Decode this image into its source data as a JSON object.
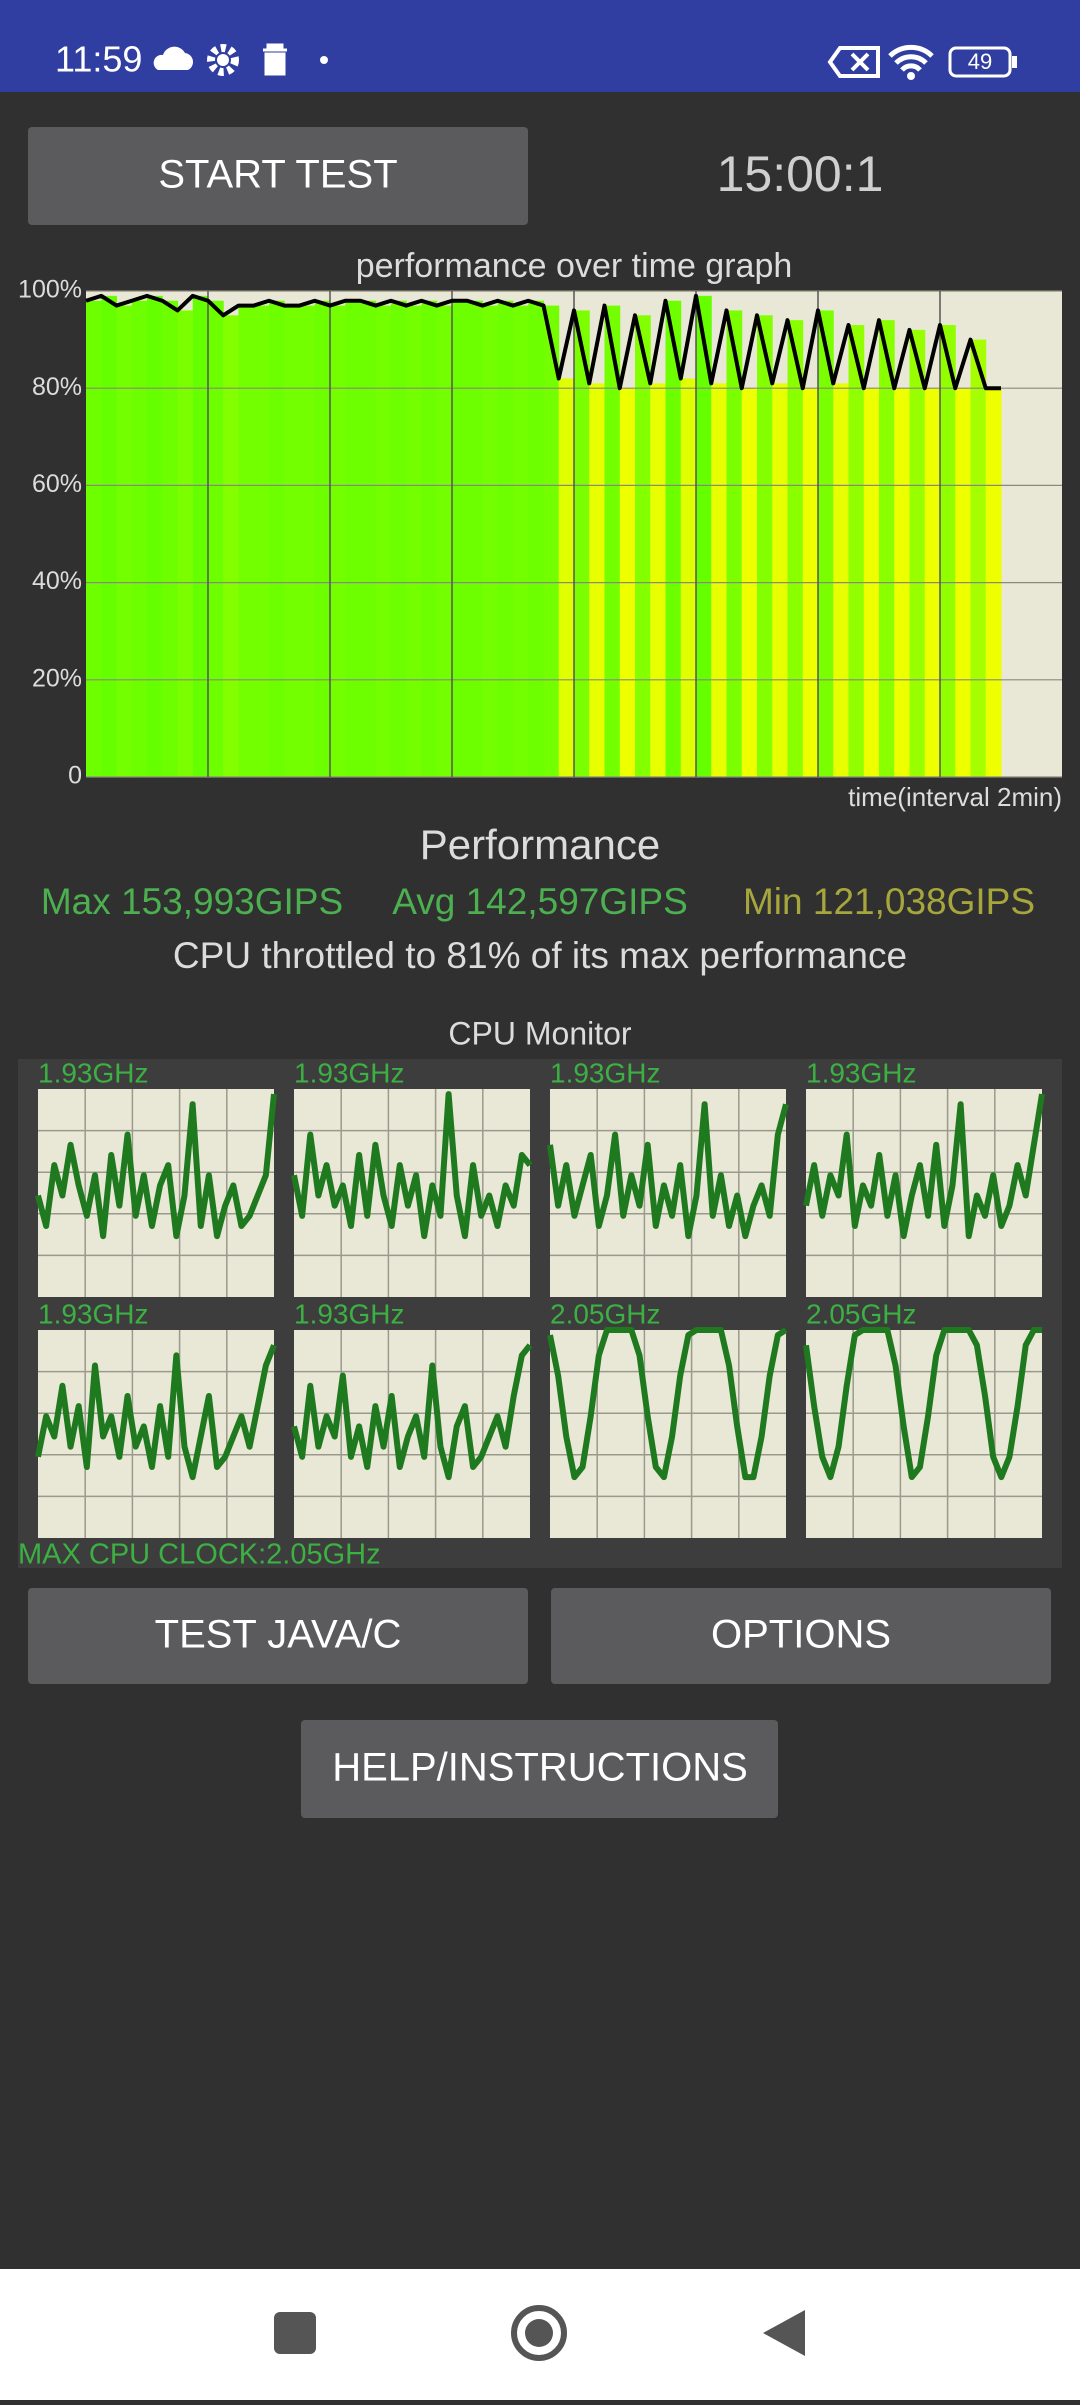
{
  "status_bar": {
    "time": "11:59",
    "battery": "49"
  },
  "start_button": "START TEST",
  "timer": "15:00:1",
  "chart_data": {
    "type": "area",
    "title": "performance over time graph",
    "x_label": "time(interval 2min)",
    "x": [
      0,
      0.25,
      0.5,
      0.75,
      1,
      1.25,
      1.5,
      1.75,
      2,
      2.25,
      2.5,
      2.75,
      3,
      3.25,
      3.5,
      3.75,
      4,
      4.25,
      4.5,
      4.75,
      5,
      5.25,
      5.5,
      5.75,
      6,
      6.25,
      6.5,
      6.75,
      7,
      7.25,
      7.5,
      7.75,
      8,
      8.25,
      8.5,
      8.75,
      9,
      9.25,
      9.5,
      9.75,
      10,
      10.25,
      10.5,
      10.75,
      11,
      11.25,
      11.5,
      11.75,
      12,
      12.25,
      12.5,
      12.75,
      13,
      13.25,
      13.5,
      13.75,
      14,
      14.25,
      14.5,
      14.75,
      15
    ],
    "values": [
      98,
      99,
      97,
      98,
      99,
      98,
      96,
      99,
      98,
      95,
      97,
      97,
      98,
      97,
      97,
      98,
      97,
      98,
      98,
      97,
      98,
      97,
      98,
      97,
      98,
      98,
      97,
      98,
      97,
      98,
      97,
      82,
      96,
      81,
      97,
      80,
      95,
      81,
      98,
      82,
      99,
      81,
      96,
      80,
      95,
      81,
      94,
      80,
      96,
      81,
      93,
      80,
      94,
      80,
      92,
      80,
      93,
      80,
      90,
      80,
      80
    ],
    "xlim": [
      0,
      16
    ],
    "xgrid": [
      2,
      4,
      6,
      8,
      10,
      12,
      14
    ],
    "ylim": [
      0,
      100
    ],
    "yticks": [
      0,
      {
        "value": 20,
        "label": "20%"
      },
      {
        "value": 40,
        "label": "40%"
      },
      {
        "value": 60,
        "label": "60%"
      },
      {
        "value": 80,
        "label": "80%"
      },
      {
        "value": 100,
        "label": "100%"
      }
    ],
    "grid": true,
    "line_color": "#000000",
    "high_color": "#66ff00",
    "low_color": "#eeff00",
    "background": "#e9e7d6"
  },
  "performance": {
    "title": "Performance",
    "max": "Max 153,993GIPS",
    "avg": "Avg 142,597GIPS",
    "min": "Min 121,038GIPS",
    "summary": "CPU throttled to 81% of its max performance"
  },
  "cpu_monitor": {
    "title": "CPU Monitor",
    "ylim": [
      0,
      2.05
    ],
    "line_color": "#1f7a1f",
    "max_clock": "MAX CPU CLOCK:2.05GHz",
    "cores": [
      {
        "label": "1.93GHz",
        "values": [
          1.0,
          0.7,
          1.3,
          1.0,
          1.5,
          1.1,
          0.8,
          1.2,
          0.6,
          1.4,
          0.9,
          1.6,
          0.8,
          1.2,
          0.7,
          1.1,
          1.3,
          0.6,
          1.0,
          1.9,
          0.7,
          1.2,
          0.6,
          0.9,
          1.1,
          0.7,
          0.8,
          1.0,
          1.2,
          2.0
        ]
      },
      {
        "label": "1.93GHz",
        "values": [
          1.2,
          0.8,
          1.6,
          1.0,
          1.3,
          0.9,
          1.1,
          0.7,
          1.4,
          0.8,
          1.5,
          1.0,
          0.7,
          1.3,
          0.9,
          1.2,
          0.6,
          1.1,
          0.8,
          2.0,
          1.0,
          0.6,
          1.3,
          0.8,
          1.0,
          0.7,
          1.1,
          0.9,
          1.4,
          1.3
        ]
      },
      {
        "label": "1.93GHz",
        "values": [
          1.5,
          0.9,
          1.3,
          0.8,
          1.1,
          1.4,
          0.7,
          1.0,
          1.6,
          0.8,
          1.2,
          0.9,
          1.5,
          0.7,
          1.1,
          0.8,
          1.3,
          0.6,
          1.0,
          1.9,
          0.8,
          1.2,
          0.7,
          1.0,
          0.6,
          0.9,
          1.1,
          0.8,
          1.6,
          1.9
        ]
      },
      {
        "label": "1.93GHz",
        "values": [
          0.9,
          1.3,
          0.8,
          1.2,
          1.0,
          1.6,
          0.7,
          1.1,
          0.9,
          1.4,
          0.8,
          1.2,
          0.6,
          1.0,
          1.3,
          0.8,
          1.5,
          0.7,
          1.1,
          1.9,
          0.6,
          1.0,
          0.8,
          1.2,
          0.7,
          0.9,
          1.3,
          1.0,
          1.5,
          2.0
        ]
      },
      {
        "label": "1.93GHz",
        "values": [
          0.8,
          1.2,
          1.0,
          1.5,
          0.9,
          1.3,
          0.7,
          1.7,
          1.0,
          1.2,
          0.8,
          1.4,
          0.9,
          1.1,
          0.7,
          1.3,
          0.8,
          1.8,
          0.9,
          0.6,
          1.0,
          1.4,
          0.7,
          0.8,
          1.0,
          1.2,
          0.9,
          1.3,
          1.7,
          1.9
        ]
      },
      {
        "label": "1.93GHz",
        "values": [
          1.1,
          0.8,
          1.5,
          0.9,
          1.2,
          1.0,
          1.6,
          0.8,
          1.1,
          0.7,
          1.3,
          0.9,
          1.4,
          0.7,
          1.0,
          1.2,
          0.8,
          1.7,
          0.9,
          0.6,
          1.1,
          1.3,
          0.7,
          0.8,
          1.0,
          1.2,
          0.9,
          1.4,
          1.8,
          1.9
        ]
      },
      {
        "label": "2.05GHz",
        "values": [
          2.0,
          1.6,
          1.0,
          0.6,
          0.7,
          1.2,
          1.8,
          2.05,
          2.05,
          2.05,
          2.05,
          1.8,
          1.2,
          0.7,
          0.6,
          1.0,
          1.6,
          2.0,
          2.05,
          2.05,
          2.05,
          2.05,
          1.7,
          1.1,
          0.6,
          0.6,
          1.0,
          1.6,
          2.0,
          2.05
        ]
      },
      {
        "label": "2.05GHz",
        "values": [
          1.9,
          1.3,
          0.8,
          0.6,
          0.9,
          1.5,
          2.0,
          2.05,
          2.05,
          2.05,
          2.05,
          1.7,
          1.1,
          0.6,
          0.7,
          1.2,
          1.8,
          2.05,
          2.05,
          2.05,
          2.05,
          1.9,
          1.4,
          0.8,
          0.6,
          0.8,
          1.3,
          1.9,
          2.05,
          2.05
        ]
      }
    ]
  },
  "buttons": {
    "test": "TEST JAVA/C",
    "options": "OPTIONS",
    "help": "HELP/INSTRUCTIONS"
  }
}
